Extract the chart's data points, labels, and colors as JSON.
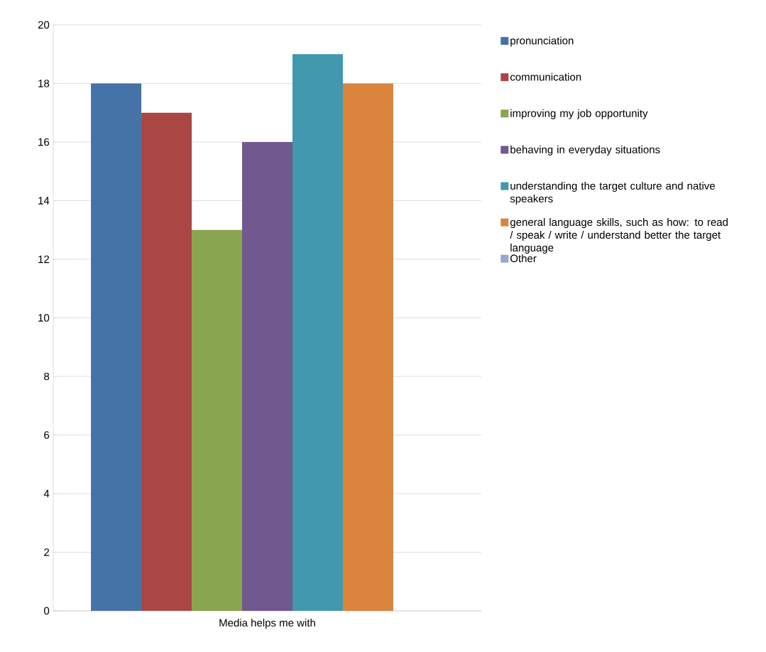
{
  "chart_data": {
    "type": "bar",
    "categories": [
      "Media helps me with"
    ],
    "series": [
      {
        "name": "pronunciation",
        "color": "#4572a7",
        "values": [
          18
        ]
      },
      {
        "name": "communication",
        "color": "#aa4643",
        "values": [
          17
        ]
      },
      {
        "name": "improving my job opportunity",
        "color": "#89a54e",
        "values": [
          13
        ]
      },
      {
        "name": "behaving in everyday situations",
        "color": "#71588f",
        "values": [
          16
        ]
      },
      {
        "name": "understanding the target culture and native speakers",
        "color": "#4198af",
        "values": [
          19
        ]
      },
      {
        "name": "general language skills, such as how: to read / speak / write / understand better the target language",
        "color": "#db843d",
        "values": [
          18
        ]
      },
      {
        "name": "Other",
        "color": "#93a9cf",
        "values": [
          0
        ]
      }
    ],
    "ylim": [
      0,
      20
    ],
    "yticks": [
      0,
      2,
      4,
      6,
      8,
      10,
      12,
      14,
      16,
      18,
      20
    ],
    "grid": "y",
    "legend": "right"
  }
}
